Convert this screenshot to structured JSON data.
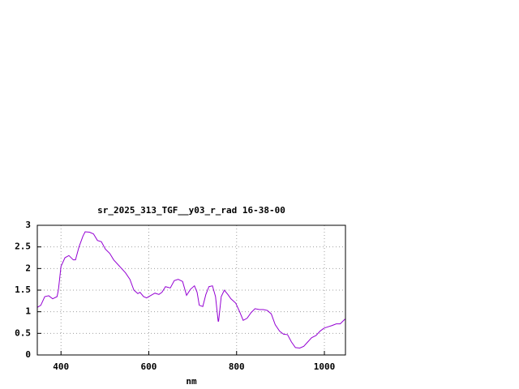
{
  "chart_data": {
    "type": "line",
    "title": "sr_2025_313_TGF__y03_r_rad 16-38-00",
    "xlabel": "nm",
    "xlim": [
      346,
      1048
    ],
    "xticks": [
      400,
      600,
      800,
      1000
    ],
    "ylim": [
      0,
      3
    ],
    "yticks": [
      0,
      0.5,
      1,
      1.5,
      2,
      2.5,
      3
    ],
    "grid": true,
    "series": [
      {
        "color": "#9400d3",
        "x": [
          346,
          354,
          363,
          372,
          381,
          391,
          394,
          400,
          409,
          418,
          428,
          433,
          441,
          450,
          455,
          465,
          474,
          483,
          492,
          501,
          511,
          520,
          529,
          538,
          547,
          557,
          566,
          575,
          580,
          588,
          595,
          605,
          614,
          623,
          630,
          638,
          649,
          658,
          667,
          677,
          686,
          695,
          704,
          710,
          715,
          723,
          730,
          737,
          745,
          752,
          758,
          759,
          765,
          772,
          780,
          787,
          798,
          807,
          815,
          824,
          833,
          842,
          852,
          861,
          870,
          879,
          888,
          898,
          907,
          916,
          925,
          934,
          944,
          953,
          962,
          971,
          981,
          990,
          999,
          1008,
          1017,
          1027,
          1036,
          1047
        ],
        "values": [
          1.1,
          1.15,
          1.35,
          1.37,
          1.3,
          1.35,
          1.5,
          2.05,
          2.25,
          2.3,
          2.2,
          2.2,
          2.5,
          2.75,
          2.85,
          2.84,
          2.8,
          2.65,
          2.62,
          2.45,
          2.35,
          2.2,
          2.1,
          2.0,
          1.9,
          1.75,
          1.5,
          1.42,
          1.45,
          1.35,
          1.32,
          1.38,
          1.43,
          1.4,
          1.45,
          1.58,
          1.55,
          1.72,
          1.75,
          1.7,
          1.38,
          1.52,
          1.6,
          1.45,
          1.15,
          1.12,
          1.4,
          1.58,
          1.6,
          1.35,
          0.78,
          0.78,
          1.35,
          1.5,
          1.4,
          1.3,
          1.2,
          1.0,
          0.8,
          0.85,
          0.98,
          1.07,
          1.05,
          1.05,
          1.03,
          0.95,
          0.7,
          0.55,
          0.48,
          0.47,
          0.3,
          0.17,
          0.16,
          0.2,
          0.3,
          0.4,
          0.45,
          0.55,
          0.62,
          0.65,
          0.68,
          0.72,
          0.72,
          0.83
        ]
      }
    ]
  }
}
